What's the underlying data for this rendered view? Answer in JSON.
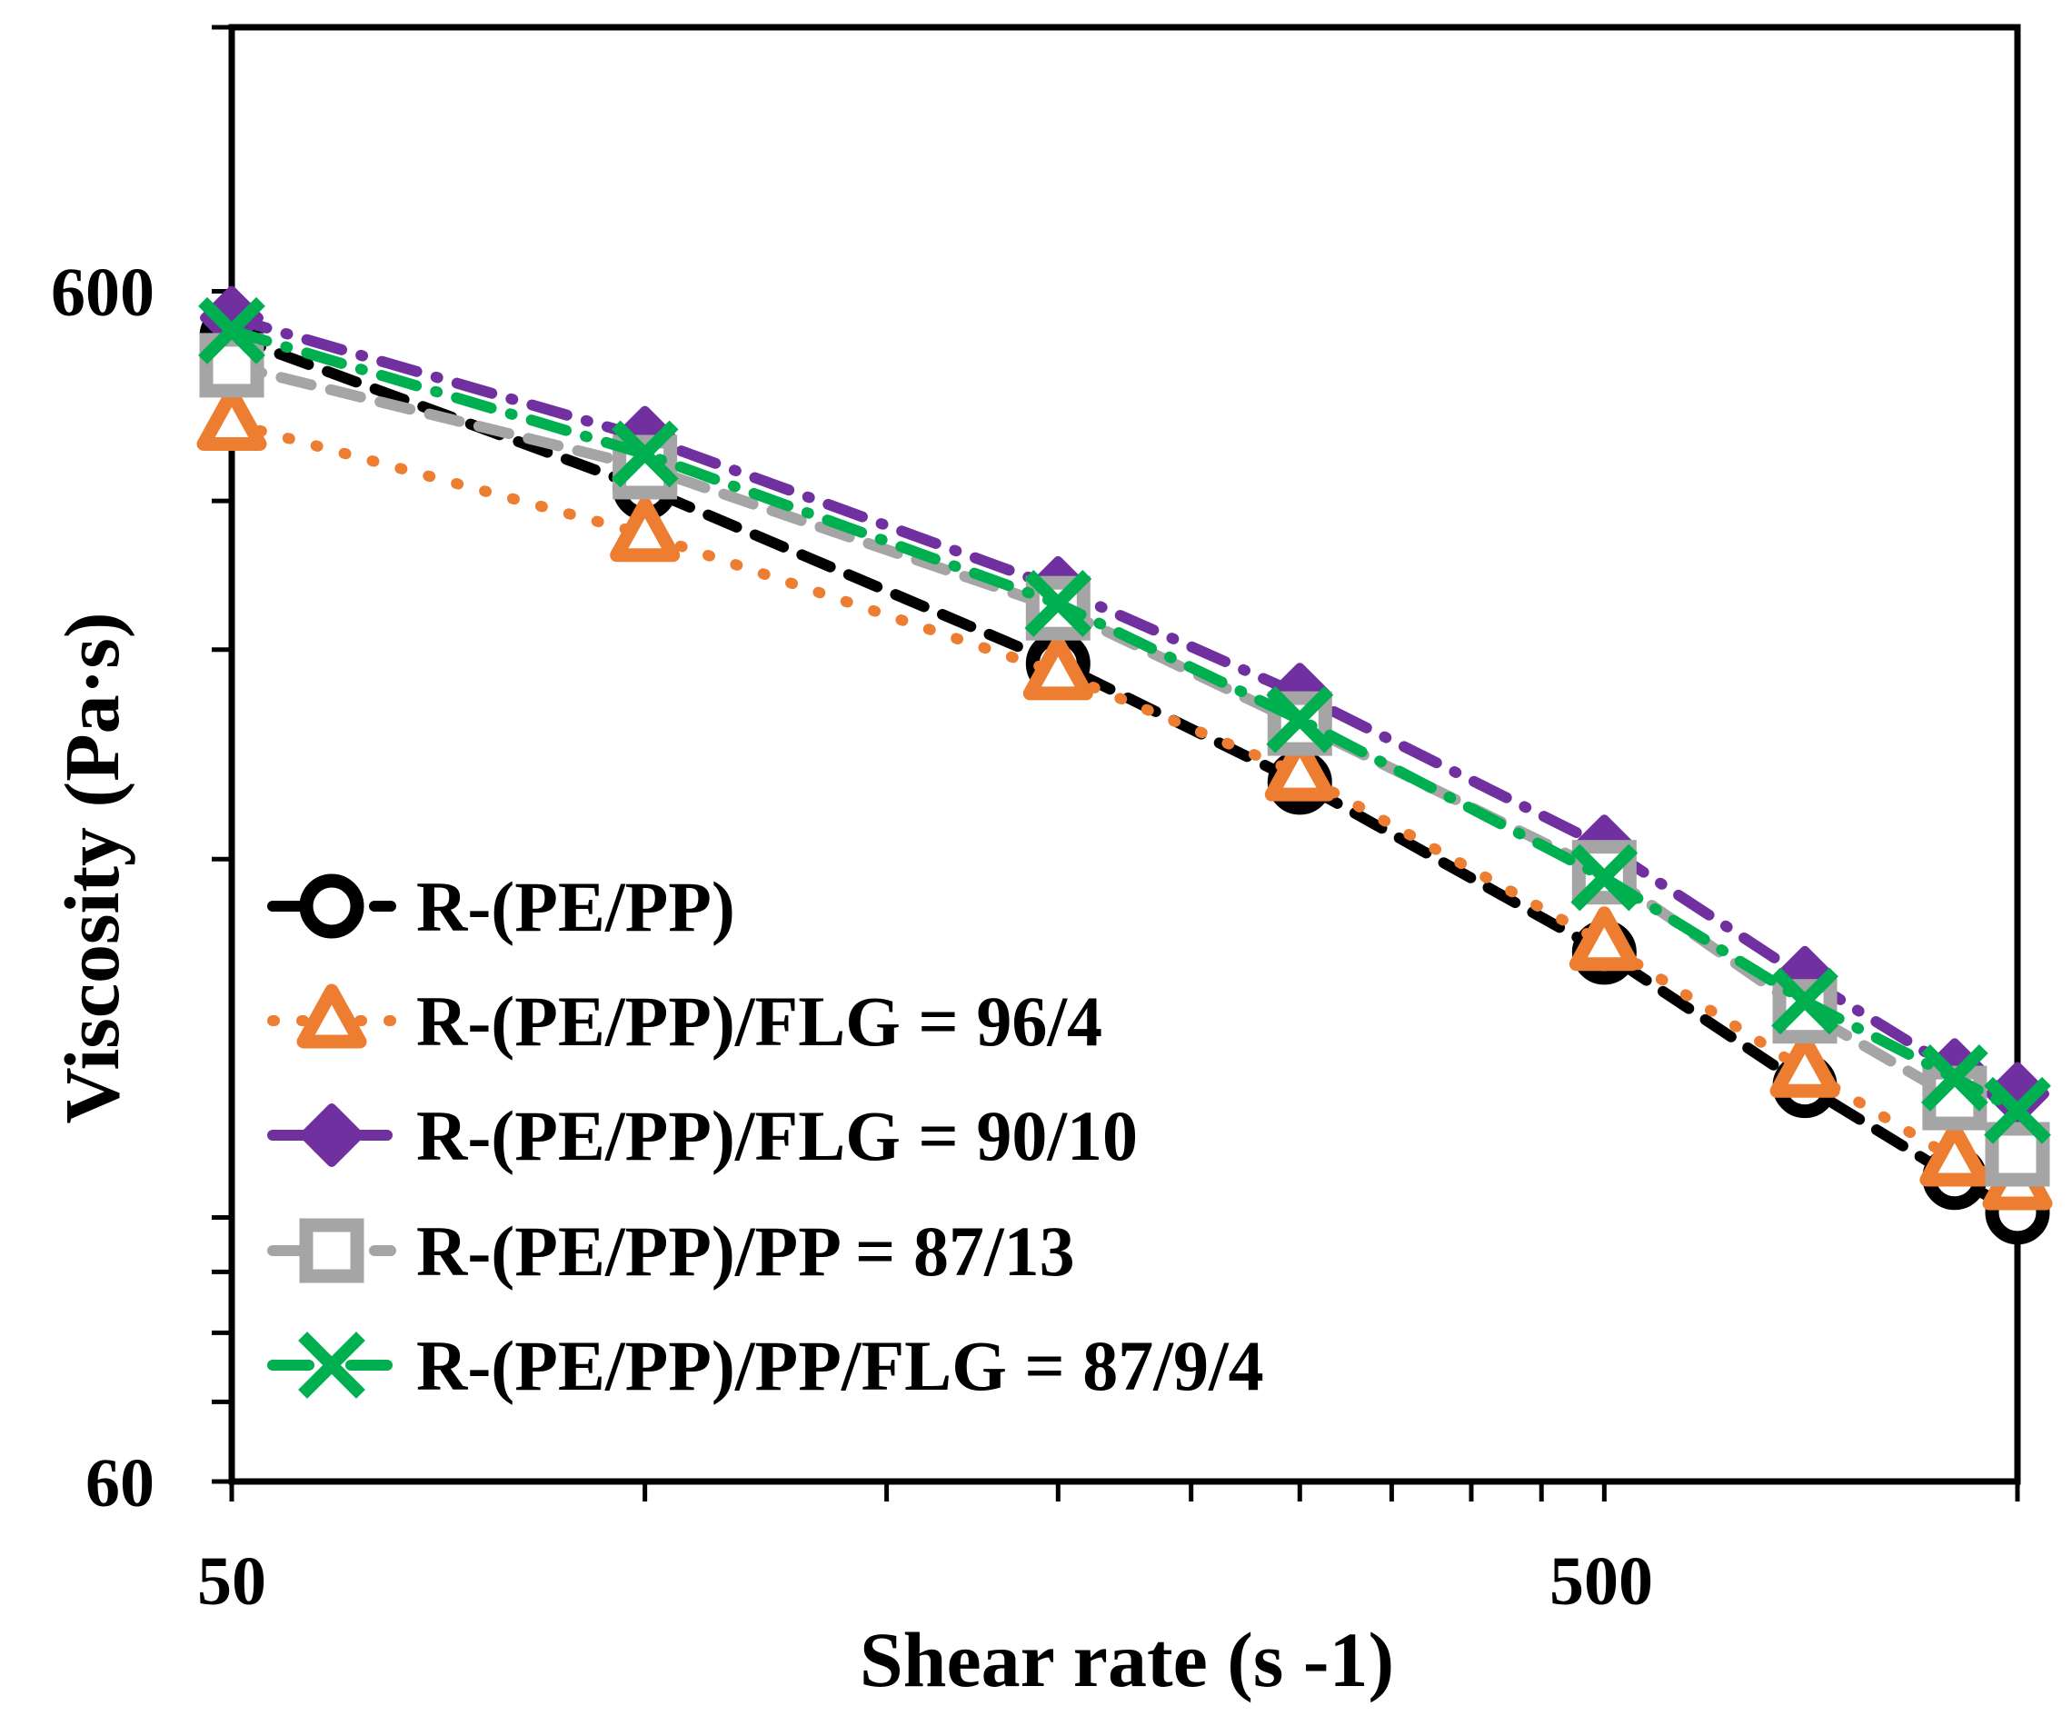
{
  "chart_data": {
    "type": "line",
    "title": "",
    "xlabel": "Shear rate (s -1)",
    "ylabel": "Viscosity (Pa·s)",
    "xscale": "log",
    "yscale": "log",
    "xlim": [
      50,
      1000
    ],
    "ylim": [
      60,
      1000
    ],
    "x_tick_labels": [
      "50",
      "500"
    ],
    "y_tick_labels": [
      "600",
      "60"
    ],
    "x_ticks": [
      50,
      100,
      150,
      200,
      250,
      300,
      350,
      400,
      450,
      500,
      1000
    ],
    "y_ticks": [
      60,
      70,
      80,
      90,
      100,
      200,
      300,
      400,
      500,
      600,
      1000
    ],
    "grid": false,
    "legend_position": "lower-left",
    "series": [
      {
        "name": "R-(PE/PP)",
        "marker": "circle",
        "line_style": "dashed",
        "color": "#000000",
        "x": [
          50,
          100,
          200,
          300,
          500,
          700,
          900,
          1000
        ],
        "y": [
          550,
          410,
          292,
          232,
          167,
          129,
          108,
          101
        ]
      },
      {
        "name": "R-(PE/PP)/FLG = 96/4",
        "marker": "triangle",
        "line_style": "dotted",
        "color": "#ED7D31",
        "x": [
          50,
          100,
          200,
          300,
          500,
          700,
          900,
          1000
        ],
        "y": [
          465,
          375,
          287,
          236,
          170,
          133,
          112,
          107
        ]
      },
      {
        "name": "R-(PE/PP)/FLG = 90/10",
        "marker": "diamond",
        "line_style": "dash-dot",
        "color": "#7030A0",
        "x": [
          50,
          100,
          200,
          300,
          500,
          700,
          900,
          1000
        ],
        "y": [
          570,
          452,
          338,
          275,
          205,
          159,
          133,
          127
        ]
      },
      {
        "name": "R-(PE/PP)/PP = 87/13",
        "marker": "square",
        "line_style": "dashed",
        "color": "#A5A5A5",
        "x": [
          50,
          100,
          200,
          300,
          500,
          700,
          900,
          1000
        ],
        "y": [
          520,
          427,
          325,
          260,
          195,
          149,
          126,
          113
        ]
      },
      {
        "name": "R-(PE/PP)/PP/FLG = 87/9/4",
        "marker": "x",
        "line_style": "dash-dot",
        "color": "#00B050",
        "x": [
          50,
          100,
          200,
          300,
          500,
          700,
          900,
          1000
        ],
        "y": [
          556,
          438,
          328,
          262,
          193,
          152,
          131,
          123
        ]
      }
    ]
  }
}
